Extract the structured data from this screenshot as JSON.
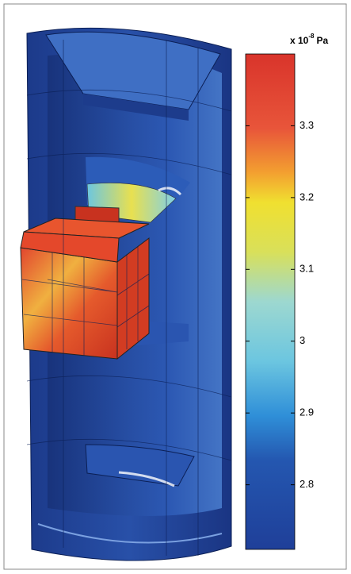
{
  "colorbar": {
    "label_prefix": "x 10",
    "label_exponent": "-8",
    "label_unit": "Pa",
    "lim": [
      2.71,
      3.4
    ],
    "ticks": [
      2.8,
      2.9,
      3,
      3.1,
      3.2,
      3.3
    ]
  }
}
